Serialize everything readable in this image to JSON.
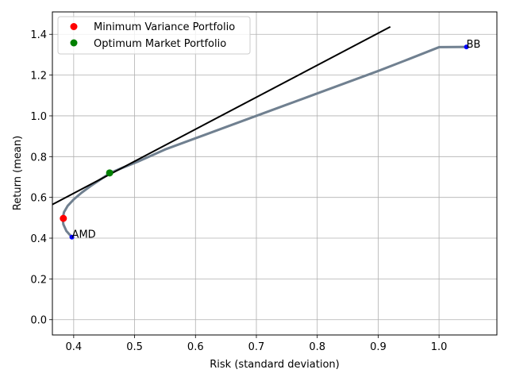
{
  "chart_data": {
    "type": "scatter",
    "xlabel": "Risk (standard deviation)",
    "ylabel": "Return (mean)",
    "xlim": [
      0.365,
      1.095
    ],
    "ylim": [
      -0.075,
      1.51
    ],
    "xticks": [
      0.4,
      0.5,
      0.6,
      0.7,
      0.8,
      0.9,
      1.0
    ],
    "xtick_labels": [
      "0.4",
      "0.5",
      "0.6",
      "0.7",
      "0.8",
      "0.9",
      "1.0"
    ],
    "yticks": [
      0.0,
      0.2,
      0.4,
      0.6,
      0.8,
      1.0,
      1.2,
      1.4
    ],
    "ytick_labels": [
      "0.0",
      "0.2",
      "0.4",
      "0.6",
      "0.8",
      "1.0",
      "1.2",
      "1.4"
    ],
    "grid": true,
    "legend_position": "top-left",
    "frontier": {
      "color": "#708090",
      "x": [
        0.397,
        0.388,
        0.383,
        0.382,
        0.384,
        0.39,
        0.4,
        0.413,
        0.428,
        0.445,
        0.46,
        0.48,
        0.505,
        0.55,
        0.6,
        0.65,
        0.7,
        0.75,
        0.8,
        0.85,
        0.9,
        0.95,
        1.0,
        1.045
      ],
      "y": [
        0.405,
        0.435,
        0.468,
        0.497,
        0.527,
        0.558,
        0.59,
        0.623,
        0.656,
        0.69,
        0.72,
        0.745,
        0.775,
        0.835,
        0.89,
        0.945,
        1.0,
        1.055,
        1.11,
        1.165,
        1.22,
        1.278,
        1.337,
        1.338
      ]
    },
    "cml": {
      "color": "#000000",
      "x": [
        0.365,
        0.92
      ],
      "y": [
        0.565,
        1.437
      ]
    },
    "assets": [
      {
        "label": "AMD",
        "x": 0.397,
        "y": 0.405,
        "color": "#0000ff"
      },
      {
        "label": "BB",
        "x": 1.045,
        "y": 1.338,
        "color": "#0000ff"
      }
    ],
    "special_points": [
      {
        "name": "Minimum Variance Portfolio",
        "x": 0.383,
        "y": 0.497,
        "color": "#ff0000"
      },
      {
        "name": "Optimum Market Portfolio",
        "x": 0.459,
        "y": 0.72,
        "color": "#008000"
      }
    ]
  }
}
